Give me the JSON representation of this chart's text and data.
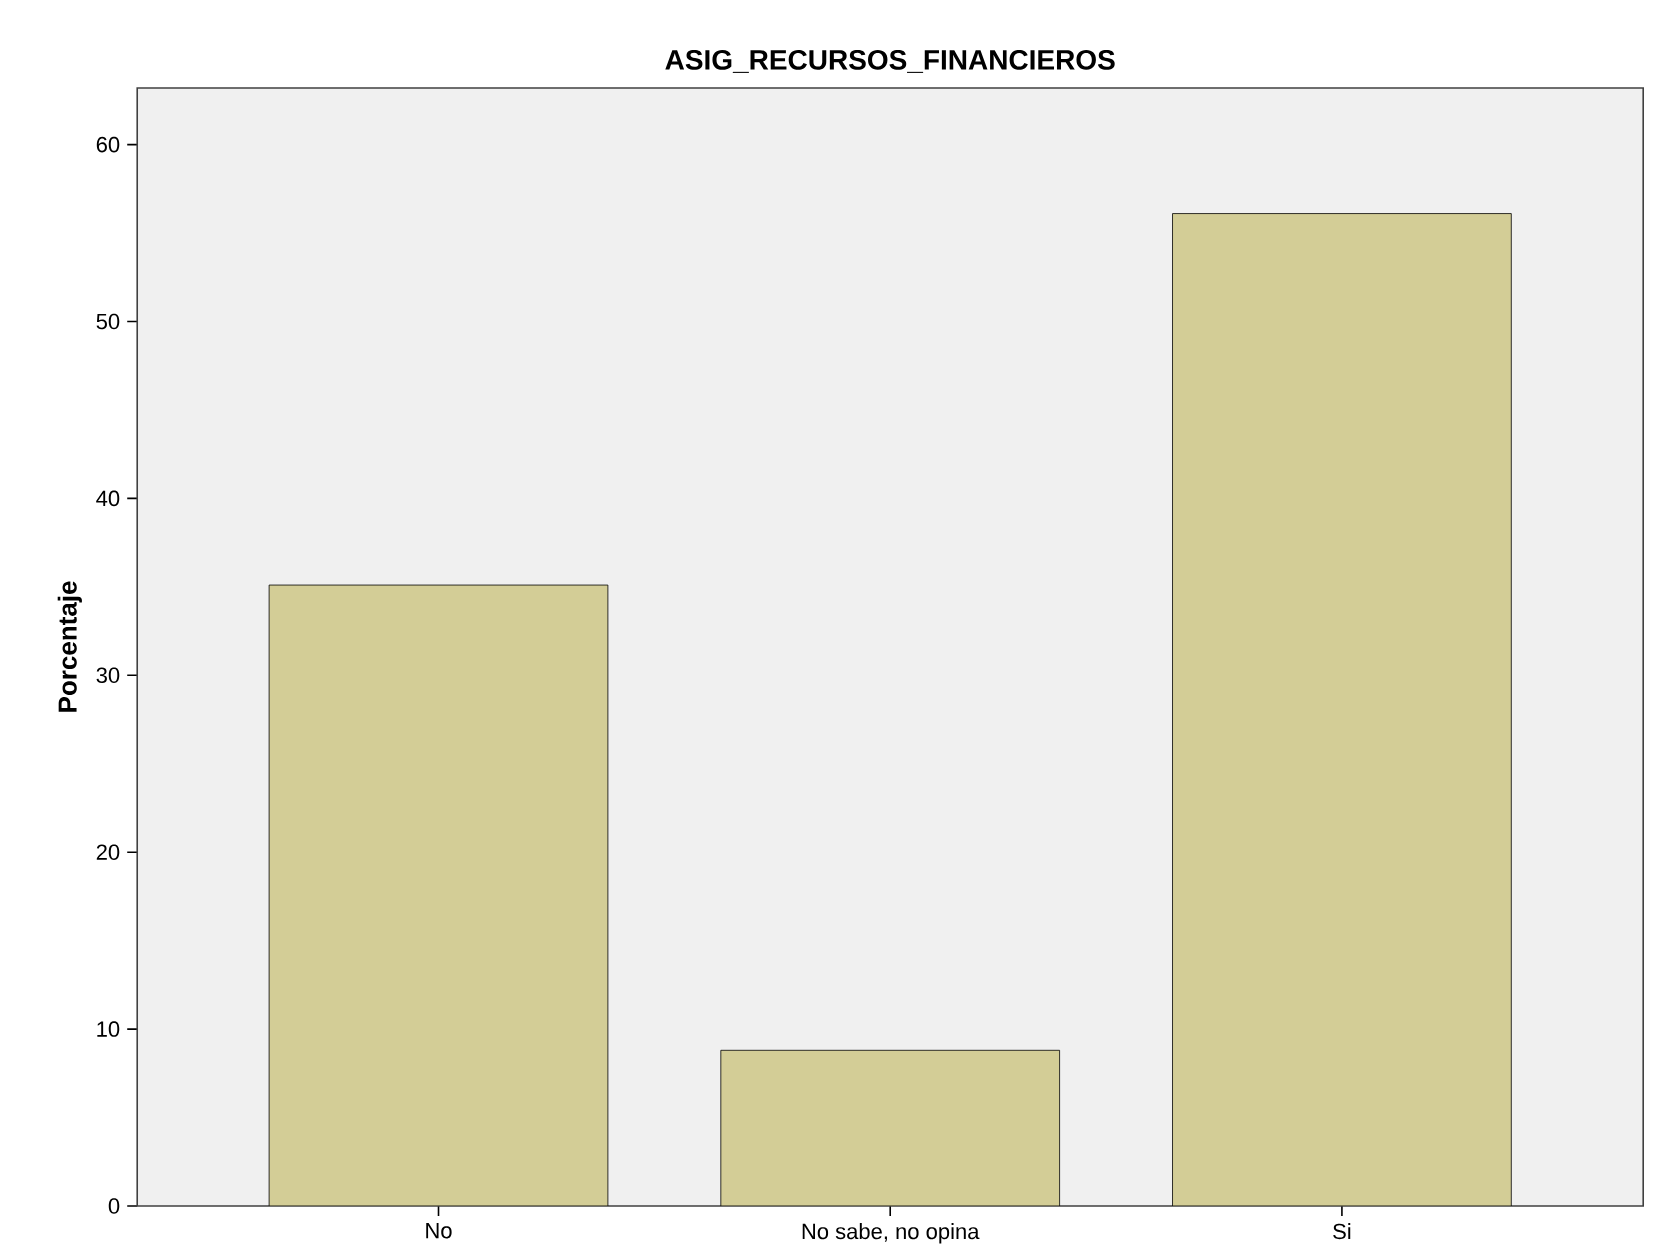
{
  "chart_data": {
    "type": "bar",
    "title": "ASIG_RECURSOS_FINANCIEROS",
    "ylabel": "Porcentaje",
    "categories": [
      "No",
      "No sabe, no opina",
      "Si"
    ],
    "values": [
      35.1,
      8.8,
      56.1
    ],
    "color": "#d3cd96",
    "ylim": [
      0,
      63.2
    ],
    "yticks": [
      0,
      10,
      20,
      30,
      40,
      50,
      60
    ]
  }
}
